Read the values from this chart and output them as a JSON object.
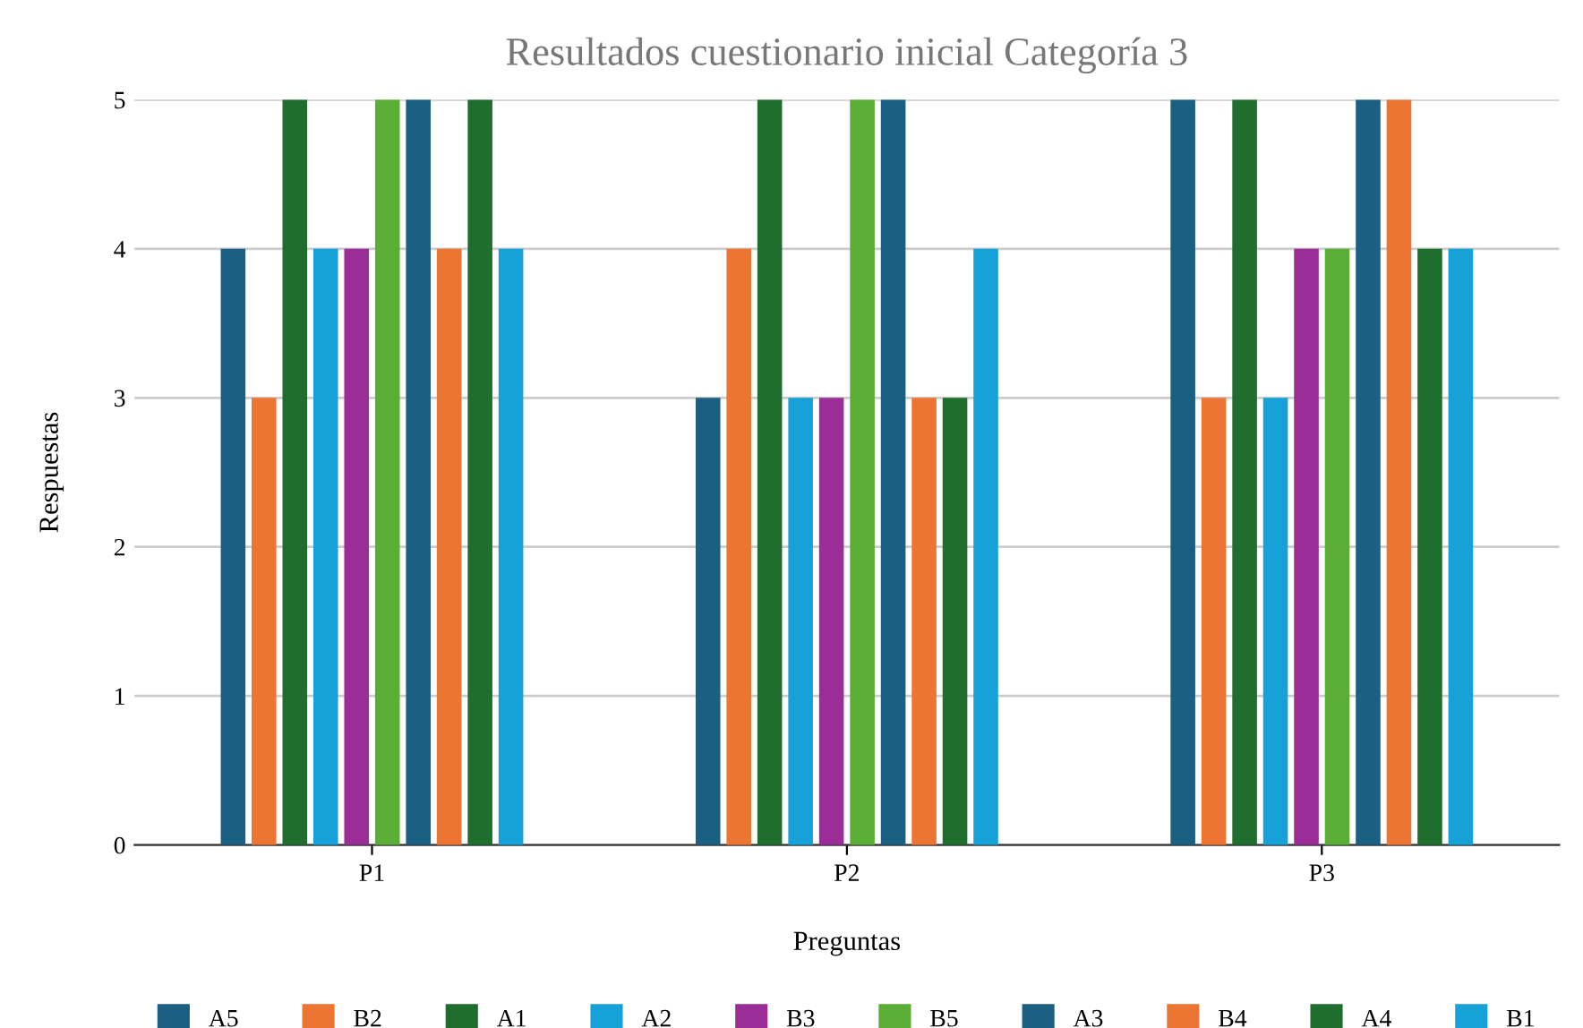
{
  "chart_data": {
    "type": "bar",
    "title": "Resultados cuestionario inicial Categoría 3",
    "xlabel": "Preguntas",
    "ylabel": "Respuestas",
    "categories": [
      "P1",
      "P2",
      "P3"
    ],
    "series": [
      {
        "name": "A5",
        "color": "#1b5f82",
        "values": [
          4,
          3,
          5
        ]
      },
      {
        "name": "B2",
        "color": "#ec7533",
        "values": [
          3,
          4,
          3
        ]
      },
      {
        "name": "A1",
        "color": "#1f6e2d",
        "values": [
          5,
          5,
          5
        ]
      },
      {
        "name": "A2",
        "color": "#16a2d8",
        "values": [
          4,
          3,
          3
        ]
      },
      {
        "name": "B3",
        "color": "#9b2d98",
        "values": [
          4,
          3,
          4
        ]
      },
      {
        "name": "B5",
        "color": "#5aae36",
        "values": [
          5,
          5,
          4
        ]
      },
      {
        "name": "A3",
        "color": "#1b5f82",
        "values": [
          5,
          5,
          5
        ]
      },
      {
        "name": "B4",
        "color": "#ec7533",
        "values": [
          4,
          3,
          5
        ]
      },
      {
        "name": "A4",
        "color": "#1f6e2d",
        "values": [
          5,
          3,
          4
        ]
      },
      {
        "name": "B1",
        "color": "#16a2d8",
        "values": [
          4,
          4,
          4
        ]
      }
    ],
    "ylim": [
      0,
      5
    ],
    "yticks": [
      0,
      1,
      2,
      3,
      4,
      5
    ],
    "grid": "y",
    "legend": "bottom"
  }
}
